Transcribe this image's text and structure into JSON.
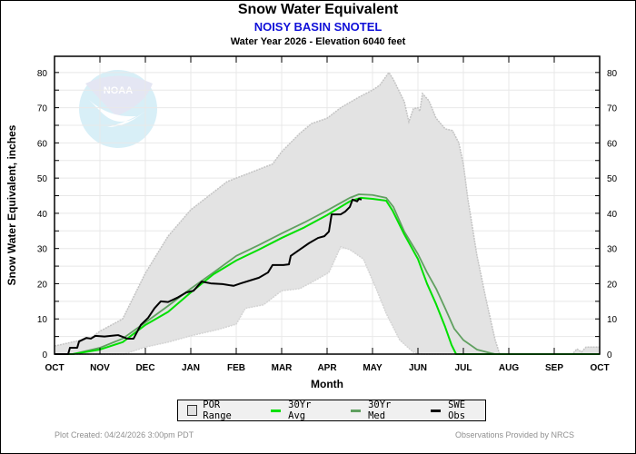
{
  "header": {
    "title": "Snow Water Equivalent",
    "station": "NOISY BASIN SNOTEL",
    "subtitle": "Water Year 2026 -  Elevation 6040 feet"
  },
  "logo": {
    "text": "NOAA"
  },
  "legend": {
    "items": [
      {
        "label": "POR Range",
        "kind": "box",
        "color": "#e0e0e0"
      },
      {
        "label": "30Yr Avg",
        "kind": "line",
        "color": "#00e000"
      },
      {
        "label": "30Yr Med",
        "kind": "line",
        "color": "#60a060"
      },
      {
        "label": "SWE Obs",
        "kind": "line",
        "color": "#000000"
      }
    ]
  },
  "footer": {
    "left": "Plot Created: 04/24/2026 3:00pm PDT",
    "right": "Observations Provided by NRCS"
  },
  "chart_data": {
    "type": "area",
    "title": "Snow Water Equivalent",
    "subtitle": "NOISY BASIN SNOTEL - Water Year 2026 -  Elevation 6040 feet",
    "xlabel": "Month",
    "ylabel": "Snow Water Equivalent, inches",
    "x_unit": "months since Oct 1",
    "xlim": [
      0,
      12
    ],
    "ylim": [
      0,
      84.6
    ],
    "x_ticks": [
      0,
      1,
      2,
      3,
      4,
      5,
      6,
      7,
      8,
      9,
      10,
      11,
      12
    ],
    "x_tick_labels": [
      "OCT",
      "NOV",
      "DEC",
      "JAN",
      "FEB",
      "MAR",
      "APR",
      "MAY",
      "JUN",
      "JUL",
      "AUG",
      "SEP",
      "OCT"
    ],
    "y_ticks": [
      0,
      10,
      20,
      30,
      40,
      50,
      60,
      70,
      80
    ],
    "y_minor_step": 5,
    "grid": true,
    "legend_position": "bottom",
    "series": [
      {
        "name": "POR Max",
        "role": "range_upper",
        "color": "#c8c8c8",
        "x": [
          0,
          0.8,
          1,
          1.5,
          2,
          2.5,
          3,
          3.8,
          4,
          4.8,
          5,
          5.4,
          5.66,
          6,
          6.3,
          6.7,
          7,
          7.16,
          7.36,
          7.46,
          7.7,
          7.8,
          7.9,
          8,
          8.04,
          8.1,
          8.24,
          8.4,
          8.6,
          8.76,
          8.9,
          9,
          9.1,
          9.3,
          9.5,
          9.7,
          9.8,
          11.4,
          11.5,
          11.6,
          11.7,
          11.8,
          12
        ],
        "y": [
          2.3,
          4.6,
          6.5,
          10,
          23,
          33.5,
          41,
          49,
          50,
          54,
          57.5,
          62.7,
          65.5,
          67,
          70,
          73,
          75,
          76.4,
          80,
          78,
          71.7,
          66,
          69.7,
          70,
          69,
          74,
          72,
          67,
          64,
          63.5,
          60,
          54,
          44,
          28,
          15.5,
          4,
          0,
          0,
          1.5,
          0.6,
          2,
          2,
          2
        ]
      },
      {
        "name": "POR Min",
        "role": "range_lower",
        "color": "#c8c8c8",
        "x": [
          0,
          1.5,
          1.54,
          2,
          2.5,
          3,
          3.6,
          4,
          4.2,
          4.6,
          5,
          5.4,
          5.8,
          6.04,
          6.3,
          6.5,
          6.8,
          7.1,
          7.3,
          7.6,
          7.9,
          8.1,
          12
        ],
        "y": [
          0,
          0,
          0,
          2,
          3.4,
          5.2,
          7,
          8.5,
          13,
          14,
          18,
          18.6,
          21.4,
          23.2,
          30.5,
          29.7,
          27,
          18,
          11.6,
          4,
          0.5,
          0,
          0
        ]
      },
      {
        "name": "30Yr Avg",
        "color": "#00e000",
        "x": [
          0,
          0.4,
          1,
          1.5,
          2,
          2.5,
          3,
          3.5,
          4,
          4.5,
          5,
          5.5,
          6,
          6.5,
          6.74,
          7,
          7.3,
          7.44,
          7.7,
          8,
          8.2,
          8.4,
          8.6,
          8.74,
          8.84,
          9,
          12
        ],
        "y": [
          0,
          0,
          1.3,
          3.4,
          8.3,
          12,
          17.5,
          22.7,
          26.6,
          29.7,
          33,
          36,
          39.5,
          43.4,
          44.4,
          44.1,
          43.6,
          40.8,
          34,
          27,
          20,
          14.2,
          7.7,
          2.6,
          0,
          0,
          0
        ]
      },
      {
        "name": "30Yr Med",
        "color": "#60a060",
        "x": [
          0,
          0.4,
          1,
          1.5,
          2,
          2.5,
          3,
          3.5,
          4,
          4.5,
          5,
          5.5,
          6,
          6.5,
          6.7,
          7,
          7.3,
          7.46,
          7.7,
          8,
          8.2,
          8.4,
          8.6,
          8.8,
          9,
          9.3,
          9.6,
          9.7,
          12
        ],
        "y": [
          0,
          0,
          1.8,
          4.4,
          9,
          13.7,
          18.6,
          23.2,
          27.9,
          31,
          34.3,
          37.4,
          40.8,
          44.4,
          45.4,
          45.2,
          44.4,
          41.8,
          34.8,
          28.4,
          23.2,
          18.6,
          13,
          7.2,
          4,
          1.3,
          0.3,
          0,
          0
        ]
      },
      {
        "name": "SWE Obs",
        "color": "#000000",
        "x": [
          0,
          0.3,
          0.34,
          0.5,
          0.54,
          0.7,
          0.8,
          0.9,
          1.1,
          1.4,
          1.6,
          1.74,
          1.9,
          2.06,
          2.2,
          2.34,
          2.5,
          2.7,
          2.9,
          3.06,
          3.24,
          3.44,
          3.7,
          3.94,
          4.1,
          4.5,
          4.7,
          4.8,
          5.04,
          5.16,
          5.2,
          5.4,
          5.6,
          5.8,
          5.94,
          6.04,
          6.1,
          6.3,
          6.4,
          6.5,
          6.56,
          6.66,
          6.7,
          6.76
        ],
        "y": [
          0,
          0,
          1.8,
          1.8,
          3.6,
          4.6,
          4.4,
          5.2,
          5,
          5.4,
          4.4,
          4.4,
          8.3,
          10.3,
          13,
          15,
          14.8,
          16,
          17.5,
          18,
          20.6,
          20.1,
          19.9,
          19.4,
          20.1,
          21.7,
          23.2,
          25.3,
          25.3,
          25.5,
          27.9,
          29.7,
          31.5,
          33,
          33.5,
          34.8,
          39.7,
          39.7,
          40.5,
          41.8,
          43.9,
          43.4,
          44.1,
          43.9
        ]
      }
    ]
  }
}
